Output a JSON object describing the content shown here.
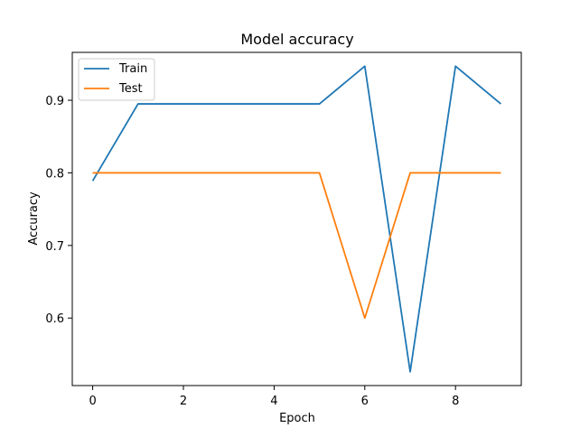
{
  "chart_data": {
    "type": "line",
    "title": "Model accuracy",
    "xlabel": "Epoch",
    "ylabel": "Accuracy",
    "x": [
      0,
      1,
      2,
      3,
      4,
      5,
      6,
      7,
      8,
      9
    ],
    "xlim": [
      -0.45,
      9.45
    ],
    "ylim": [
      0.507,
      0.966
    ],
    "xticks": [
      0,
      2,
      4,
      6,
      8
    ],
    "yticks": [
      0.6,
      0.7,
      0.8,
      0.9
    ],
    "xtick_labels": [
      "0",
      "2",
      "4",
      "6",
      "8"
    ],
    "ytick_labels": [
      "0.6",
      "0.7",
      "0.8",
      "0.9"
    ],
    "grid": false,
    "legend": "top-left",
    "series": [
      {
        "name": "Train",
        "color": "#1f77b4",
        "values": [
          0.789,
          0.895,
          0.895,
          0.895,
          0.895,
          0.895,
          0.947,
          0.526,
          0.947,
          0.895
        ]
      },
      {
        "name": "Test",
        "color": "#ff7f0e",
        "values": [
          0.8,
          0.8,
          0.8,
          0.8,
          0.8,
          0.8,
          0.6,
          0.8,
          0.8,
          0.8
        ]
      }
    ]
  }
}
